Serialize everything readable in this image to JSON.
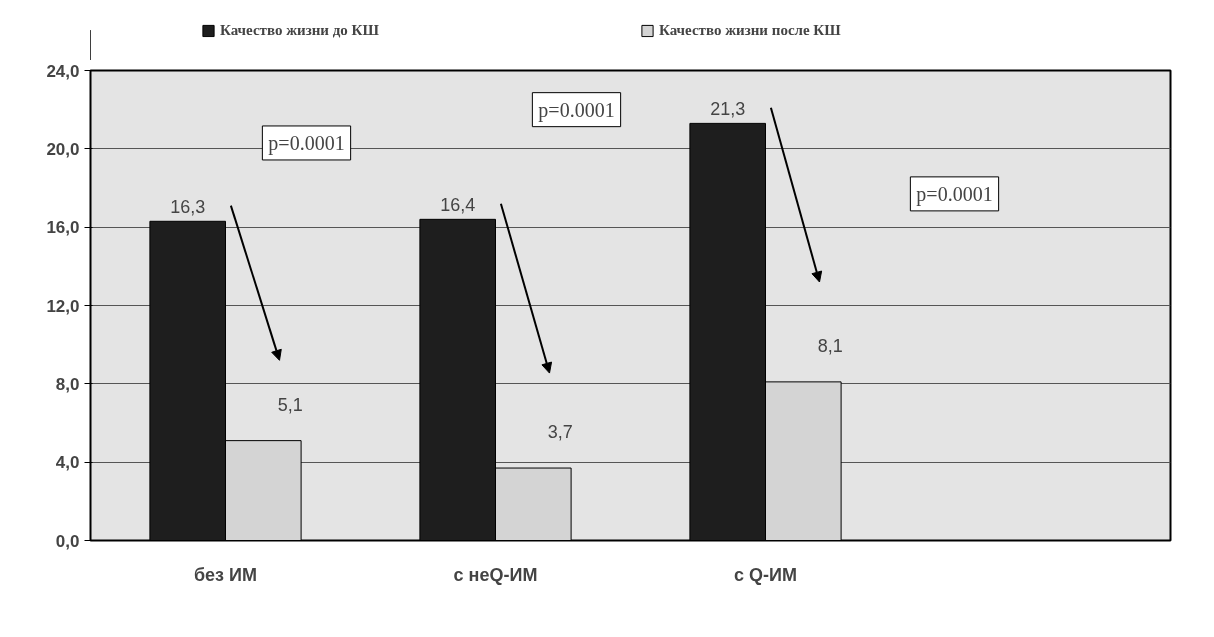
{
  "chart_data": {
    "type": "bar",
    "categories": [
      "без ИМ",
      "с неQ-ИМ",
      "с Q-ИМ",
      null
    ],
    "series": [
      {
        "name": "Качество жизни до КШ",
        "color": "#1e1e1e",
        "values": [
          16.3,
          16.4,
          21.3,
          null
        ],
        "value_labels": [
          "16,3",
          "16,4",
          "21,3",
          null
        ]
      },
      {
        "name": "Качество жизни после КШ",
        "color": "#d4d4d4",
        "values": [
          5.1,
          3.7,
          8.1,
          null
        ],
        "value_labels": [
          "5,1",
          "3,7",
          "8,1",
          null
        ]
      }
    ],
    "ylim": [
      0,
      24
    ],
    "yticks": [
      {
        "value": 0,
        "label": "0,0"
      },
      {
        "value": 4,
        "label": "4,0"
      },
      {
        "value": 8,
        "label": "8,0"
      },
      {
        "value": 12,
        "label": "12,0"
      },
      {
        "value": 16,
        "label": "16,0"
      },
      {
        "value": 20,
        "label": "20,0"
      },
      {
        "value": 24,
        "label": "24,0"
      }
    ],
    "annotations": [
      "p=0.0001",
      "p=0.0001",
      "p=0.0001"
    ],
    "grid": "y",
    "legend": "top"
  }
}
